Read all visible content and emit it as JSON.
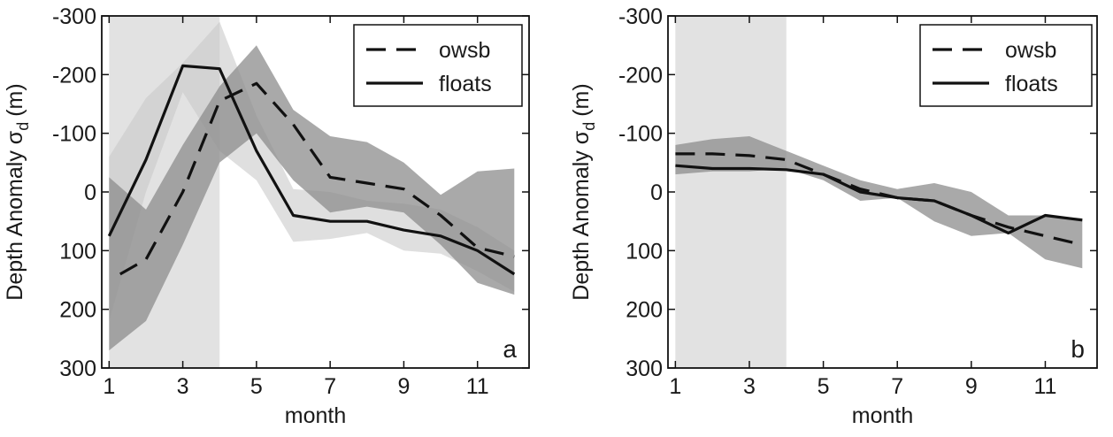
{
  "chart_data": [
    {
      "type": "line",
      "panel_label": "a",
      "xlabel": "month",
      "ylabel": "Depth Anomaly σ",
      "ylabel_sub": "d",
      "ylabel_unit": "(m)",
      "xlim": [
        0.8,
        12.4
      ],
      "ylim": [
        300,
        -300
      ],
      "y_reversed": true,
      "xticks": [
        1,
        3,
        5,
        7,
        9,
        11
      ],
      "yticks": [
        -300,
        -200,
        -100,
        0,
        100,
        200,
        300
      ],
      "xtick_labels": [
        "1",
        "3",
        "5",
        "7",
        "9",
        "11"
      ],
      "ytick_labels": [
        "-300",
        "-200",
        "-100",
        "0",
        "100",
        "200",
        "300"
      ],
      "shaded_months": [
        1,
        4
      ],
      "grid": false,
      "legend_position": "top-right",
      "series": [
        {
          "name": "owsb",
          "style": "dashed",
          "x": [
            1.3,
            2,
            3,
            4,
            5,
            6,
            7,
            8,
            9,
            10,
            11,
            12
          ],
          "values": [
            140,
            115,
            0,
            -155,
            -185,
            -115,
            -25,
            -15,
            -5,
            40,
            95,
            110
          ],
          "band_x": [
            1,
            2,
            3,
            4,
            5,
            6,
            7,
            8,
            9,
            10,
            11,
            12
          ],
          "band_upper": [
            -25,
            30,
            -80,
            -180,
            -250,
            -140,
            -95,
            -85,
            -50,
            5,
            -35,
            -40
          ],
          "band_lower": [
            270,
            220,
            90,
            -50,
            -100,
            -20,
            35,
            25,
            35,
            90,
            155,
            175
          ]
        },
        {
          "name": "floats",
          "style": "solid",
          "x": [
            1,
            2,
            3,
            4,
            5,
            6,
            7,
            8,
            9,
            10,
            11,
            12
          ],
          "values": [
            75,
            -55,
            -215,
            -210,
            -70,
            40,
            50,
            50,
            65,
            75,
            100,
            140
          ],
          "band_x": [
            1,
            2,
            3,
            4,
            5,
            6,
            7,
            8,
            9,
            10,
            11,
            12
          ],
          "band_upper": [
            -60,
            -160,
            -220,
            -290,
            -130,
            -5,
            0,
            15,
            20,
            30,
            60,
            100
          ],
          "band_lower": [
            220,
            0,
            -170,
            -70,
            -20,
            85,
            80,
            70,
            100,
            105,
            135,
            170
          ]
        }
      ]
    },
    {
      "type": "line",
      "panel_label": "b",
      "xlabel": "month",
      "ylabel": "Depth Anomaly σ",
      "ylabel_sub": "d",
      "ylabel_unit": "(m)",
      "xlim": [
        0.8,
        12.4
      ],
      "ylim": [
        300,
        -300
      ],
      "y_reversed": true,
      "xticks": [
        1,
        3,
        5,
        7,
        9,
        11
      ],
      "yticks": [
        -300,
        -200,
        -100,
        0,
        100,
        200,
        300
      ],
      "xtick_labels": [
        "1",
        "3",
        "5",
        "7",
        "9",
        "11"
      ],
      "ytick_labels": [
        "-300",
        "-200",
        "-100",
        "0",
        "100",
        "200",
        "300"
      ],
      "shaded_months": [
        1,
        4
      ],
      "grid": false,
      "legend_position": "top-right",
      "series": [
        {
          "name": "owsb",
          "style": "dashed",
          "x": [
            1,
            2,
            3,
            4,
            5,
            6,
            7,
            8,
            9,
            10,
            11,
            12
          ],
          "values": [
            -65,
            -65,
            -62,
            -55,
            -30,
            -5,
            10,
            15,
            40,
            60,
            75,
            90
          ],
          "band_x": [
            1,
            2,
            3,
            4,
            5,
            6,
            7,
            8,
            9,
            10,
            11,
            12
          ],
          "band_upper": [
            -80,
            -90,
            -95,
            -70,
            -45,
            -20,
            -5,
            -15,
            0,
            40,
            40,
            45
          ],
          "band_lower": [
            -30,
            -35,
            -35,
            -40,
            -20,
            15,
            10,
            50,
            75,
            70,
            115,
            130
          ]
        },
        {
          "name": "floats",
          "style": "solid",
          "x": [
            1,
            2,
            3,
            4,
            5,
            6,
            7,
            8,
            9,
            10,
            11,
            12
          ],
          "values": [
            -45,
            -40,
            -40,
            -38,
            -30,
            0,
            10,
            15,
            40,
            70,
            40,
            48
          ],
          "band_x": [],
          "band_upper": [],
          "band_lower": []
        }
      ]
    }
  ]
}
